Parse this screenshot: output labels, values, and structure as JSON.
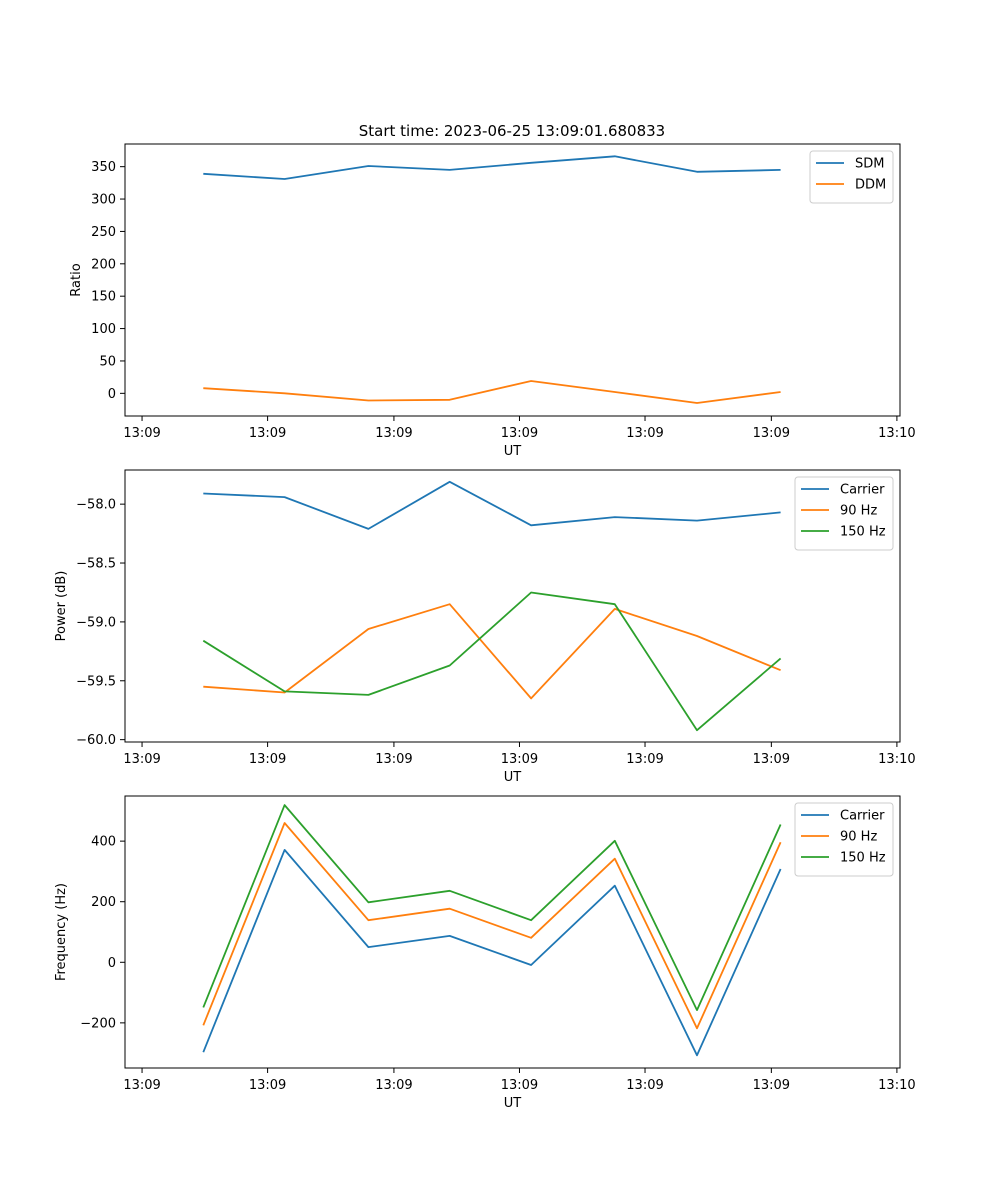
{
  "figure": {
    "title": "Start time: 2023-06-25 13:09:01.680833"
  },
  "chart_data": [
    {
      "type": "line",
      "xlabel": "UT",
      "ylabel": "Ratio",
      "x_tick_labels": [
        "13:09",
        "13:09",
        "13:09",
        "13:09",
        "13:09",
        "13:09",
        "13:10"
      ],
      "y_ticks": [
        0,
        50,
        100,
        150,
        200,
        250,
        300,
        350
      ],
      "ylim": [
        -35,
        385
      ],
      "legend_position": "top-right",
      "series": [
        {
          "name": "SDM",
          "color": "#1f77b4",
          "values": [
            339,
            331,
            351,
            345,
            356,
            366,
            342,
            345
          ]
        },
        {
          "name": "DDM",
          "color": "#ff7f0e",
          "values": [
            8,
            0,
            -11,
            -10,
            19,
            2,
            -15,
            2
          ]
        }
      ]
    },
    {
      "type": "line",
      "xlabel": "UT",
      "ylabel": "Power (dB)",
      "x_tick_labels": [
        "13:09",
        "13:09",
        "13:09",
        "13:09",
        "13:09",
        "13:09",
        "13:10"
      ],
      "y_ticks": [
        -60.0,
        -59.5,
        -59.0,
        -58.5,
        -58.0
      ],
      "y_tick_labels": [
        "−60.0",
        "−59.5",
        "−59.0",
        "−58.5",
        "−58.0"
      ],
      "ylim": [
        -60.02,
        -57.71
      ],
      "legend_position": "top-right",
      "series": [
        {
          "name": "Carrier",
          "color": "#1f77b4",
          "values": [
            -57.91,
            -57.94,
            -58.21,
            -57.81,
            -58.18,
            -58.11,
            -58.14,
            -58.07
          ]
        },
        {
          "name": "90 Hz",
          "color": "#ff7f0e",
          "values": [
            -59.55,
            -59.6,
            -59.06,
            -58.85,
            -59.65,
            -58.89,
            -59.12,
            -59.41
          ]
        },
        {
          "name": "150 Hz",
          "color": "#2ca02c",
          "values": [
            -59.16,
            -59.59,
            -59.62,
            -59.37,
            -58.75,
            -58.85,
            -59.92,
            -59.31
          ]
        }
      ]
    },
    {
      "type": "line",
      "xlabel": "UT",
      "ylabel": "Frequency (Hz)",
      "x_tick_labels": [
        "13:09",
        "13:09",
        "13:09",
        "13:09",
        "13:09",
        "13:09",
        "13:10"
      ],
      "y_ticks": [
        -200,
        0,
        200,
        400
      ],
      "ylim": [
        -349,
        549
      ],
      "legend_position": "top-right",
      "series": [
        {
          "name": "Carrier",
          "color": "#1f77b4",
          "values": [
            -297,
            371,
            50,
            87,
            -9,
            253,
            -307,
            308
          ]
        },
        {
          "name": "90 Hz",
          "color": "#ff7f0e",
          "values": [
            -208,
            460,
            139,
            177,
            81,
            342,
            -218,
            396
          ]
        },
        {
          "name": "150 Hz",
          "color": "#2ca02c",
          "values": [
            -149,
            519,
            198,
            236,
            139,
            401,
            -158,
            455
          ]
        }
      ]
    }
  ]
}
